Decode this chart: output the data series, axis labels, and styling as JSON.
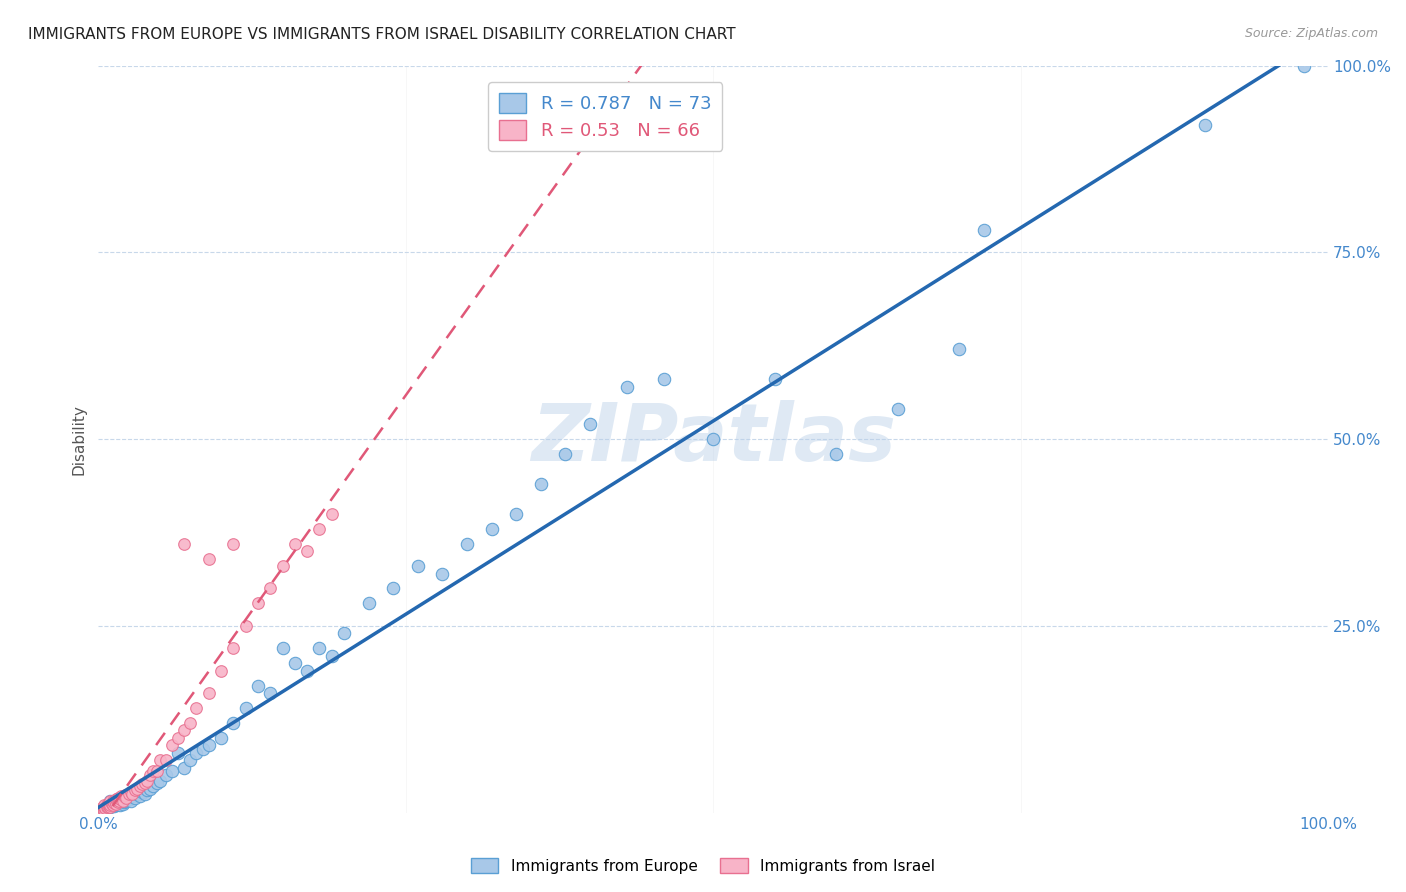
{
  "title": "IMMIGRANTS FROM EUROPE VS IMMIGRANTS FROM ISRAEL DISABILITY CORRELATION CHART",
  "source": "Source: ZipAtlas.com",
  "ylabel": "Disability",
  "watermark": "ZIPatlas",
  "r_europe": 0.787,
  "n_europe": 73,
  "r_israel": 0.53,
  "n_israel": 66,
  "color_europe_fill": "#a8c8e8",
  "color_europe_edge": "#5a9fd4",
  "color_europe_line": "#2468b0",
  "color_israel_fill": "#f8b4c8",
  "color_israel_edge": "#e87090",
  "color_israel_line": "#e05878",
  "color_text_blue": "#4488cc",
  "color_text_pink": "#e05878",
  "xlim": [
    0,
    1
  ],
  "ylim": [
    0,
    1
  ],
  "xtick_labels_bottom": [
    "0.0%",
    "100.0%"
  ],
  "xtick_vals_bottom": [
    0,
    1.0
  ],
  "ytick_labels_right": [
    "100.0%",
    "75.0%",
    "50.0%",
    "25.0%"
  ],
  "ytick_vals": [
    0,
    0.25,
    0.5,
    0.75,
    1.0
  ],
  "grid_ytick_vals": [
    0.25,
    0.5,
    0.75,
    1.0
  ],
  "europe_x": [
    0.005,
    0.007,
    0.008,
    0.009,
    0.01,
    0.01,
    0.01,
    0.012,
    0.013,
    0.014,
    0.015,
    0.016,
    0.017,
    0.018,
    0.019,
    0.02,
    0.02,
    0.021,
    0.022,
    0.023,
    0.025,
    0.026,
    0.027,
    0.028,
    0.03,
    0.032,
    0.034,
    0.036,
    0.038,
    0.04,
    0.042,
    0.045,
    0.048,
    0.05,
    0.055,
    0.06,
    0.065,
    0.07,
    0.075,
    0.08,
    0.085,
    0.09,
    0.1,
    0.11,
    0.12,
    0.13,
    0.14,
    0.15,
    0.16,
    0.17,
    0.18,
    0.19,
    0.2,
    0.22,
    0.24,
    0.26,
    0.28,
    0.3,
    0.32,
    0.34,
    0.36,
    0.38,
    0.4,
    0.43,
    0.46,
    0.5,
    0.55,
    0.6,
    0.65,
    0.7,
    0.72,
    0.9,
    0.98
  ],
  "europe_y": [
    0.005,
    0.008,
    0.01,
    0.007,
    0.01,
    0.015,
    0.008,
    0.012,
    0.009,
    0.013,
    0.01,
    0.012,
    0.015,
    0.01,
    0.018,
    0.012,
    0.018,
    0.014,
    0.016,
    0.015,
    0.02,
    0.018,
    0.016,
    0.022,
    0.02,
    0.025,
    0.022,
    0.028,
    0.025,
    0.03,
    0.032,
    0.035,
    0.04,
    0.042,
    0.05,
    0.055,
    0.08,
    0.06,
    0.07,
    0.08,
    0.085,
    0.09,
    0.1,
    0.12,
    0.14,
    0.17,
    0.16,
    0.22,
    0.2,
    0.19,
    0.22,
    0.21,
    0.24,
    0.28,
    0.3,
    0.33,
    0.32,
    0.36,
    0.38,
    0.4,
    0.44,
    0.48,
    0.52,
    0.57,
    0.58,
    0.5,
    0.58,
    0.48,
    0.54,
    0.62,
    0.78,
    0.92,
    1.0
  ],
  "israel_x": [
    0.002,
    0.003,
    0.004,
    0.004,
    0.005,
    0.005,
    0.005,
    0.006,
    0.007,
    0.007,
    0.008,
    0.008,
    0.009,
    0.009,
    0.01,
    0.01,
    0.01,
    0.011,
    0.012,
    0.012,
    0.013,
    0.014,
    0.015,
    0.015,
    0.016,
    0.016,
    0.017,
    0.018,
    0.019,
    0.02,
    0.021,
    0.022,
    0.023,
    0.025,
    0.027,
    0.028,
    0.03,
    0.032,
    0.034,
    0.036,
    0.038,
    0.04,
    0.042,
    0.045,
    0.048,
    0.05,
    0.055,
    0.06,
    0.065,
    0.07,
    0.075,
    0.08,
    0.09,
    0.1,
    0.11,
    0.12,
    0.13,
    0.14,
    0.15,
    0.16,
    0.17,
    0.18,
    0.09,
    0.11,
    0.07,
    0.19
  ],
  "israel_y": [
    0.005,
    0.006,
    0.005,
    0.008,
    0.004,
    0.007,
    0.01,
    0.006,
    0.008,
    0.01,
    0.007,
    0.012,
    0.009,
    0.013,
    0.008,
    0.01,
    0.015,
    0.012,
    0.01,
    0.015,
    0.013,
    0.016,
    0.012,
    0.018,
    0.014,
    0.02,
    0.016,
    0.018,
    0.022,
    0.016,
    0.022,
    0.024,
    0.02,
    0.025,
    0.028,
    0.025,
    0.03,
    0.032,
    0.035,
    0.038,
    0.04,
    0.042,
    0.05,
    0.055,
    0.055,
    0.07,
    0.07,
    0.09,
    0.1,
    0.11,
    0.12,
    0.14,
    0.16,
    0.19,
    0.22,
    0.25,
    0.28,
    0.3,
    0.33,
    0.36,
    0.35,
    0.38,
    0.34,
    0.36,
    0.36,
    0.4
  ]
}
